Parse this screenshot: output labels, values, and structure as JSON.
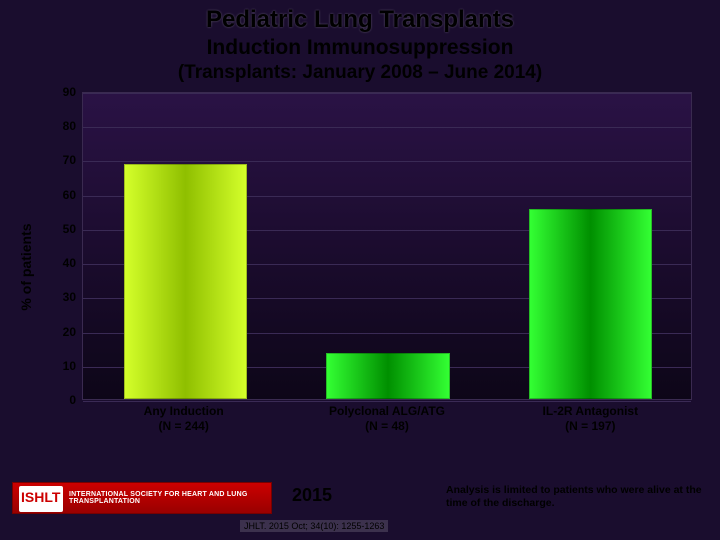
{
  "title": {
    "main": "Pediatric Lung Transplants",
    "sub": "Induction Immunosuppression",
    "sub2": "(Transplants: January 2008 – June 2014)"
  },
  "chart": {
    "type": "bar",
    "ylabel": "% of patients",
    "ylim": [
      0,
      90
    ],
    "ytick_step": 10,
    "background_gradient": [
      "#2a1245",
      "#0d0618"
    ],
    "grid_color": "#3a2a55",
    "bar_width_pct": 20,
    "categories": [
      {
        "label_line1": "Any Induction",
        "label_line2": "(N = 244)"
      },
      {
        "label_line1": "Polyclonal ALG/ATG",
        "label_line2": "(N = 48)"
      },
      {
        "label_line1": "IL-2R Antagonist",
        "label_line2": "(N = 197)"
      }
    ],
    "values": [
      68,
      13,
      55
    ],
    "bar_colors": [
      {
        "from": "#d4ff2a",
        "to": "#8fbf00"
      },
      {
        "from": "#33ff33",
        "to": "#008f00"
      },
      {
        "from": "#33ff33",
        "to": "#008f00"
      }
    ],
    "label_fontsize": 12,
    "tick_fontsize": 12,
    "ylabel_fontsize": 14
  },
  "footer": {
    "org_acronym": "ISHLT",
    "org_full": "INTERNATIONAL SOCIETY FOR HEART AND LUNG TRANSPLANTATION",
    "year": "2015",
    "citation": "JHLT. 2015 Oct; 34(10): 1255-1263",
    "note": "Analysis is limited to patients who were alive at the time of the discharge."
  }
}
